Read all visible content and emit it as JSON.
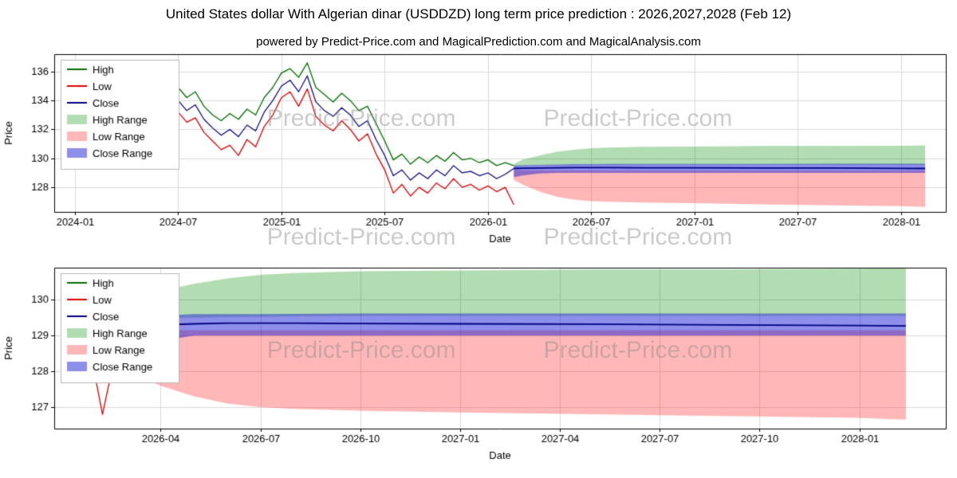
{
  "title": "United States dollar With Algerian dinar (USDDZD) long term price prediction : 2026,2027,2028 (Feb 12)",
  "subtitle": "powered by Predict-Price.com and MagicalPrediction.com and MagicalAnalysis.com",
  "watermark": {
    "text": "Predict-Price.com",
    "color": "#8f8f8f"
  },
  "legend": [
    "High",
    "Low",
    "Close",
    "High Range",
    "Low Range",
    "Close Range"
  ],
  "colors": {
    "high": "#006e00",
    "low": "#dd0000",
    "close": "#000080",
    "high_range": "rgba(0,140,0,0.30)",
    "low_range": "rgba(255,30,30,0.32)",
    "close_range": "rgba(30,30,215,0.50)",
    "grid": "#d9d9d9",
    "axis": "#000000"
  },
  "chart_data": [
    {
      "type": "line",
      "title": "",
      "xlabel": "Date",
      "ylabel": "Price",
      "ylim": [
        126.3,
        137.2
      ],
      "xlim": [
        -1.2,
        50.6
      ],
      "yticks": [
        128,
        130,
        132,
        134,
        136
      ],
      "xticks": {
        "pos": [
          0,
          6,
          12,
          18,
          24,
          30,
          36,
          42,
          48
        ],
        "labels": [
          "2024-01",
          "2024-07",
          "2025-01",
          "2025-07",
          "2026-01",
          "2026-07",
          "2027-01",
          "2027-07",
          "2028-01"
        ]
      },
      "historical": {
        "x": [
          0,
          0.5,
          1,
          1.5,
          2,
          2.5,
          3,
          3.5,
          4,
          4.5,
          5,
          5.5,
          6,
          6.5,
          7,
          7.5,
          8,
          8.5,
          9,
          9.5,
          10,
          10.5,
          11,
          11.5,
          12,
          12.5,
          13,
          13.5,
          14,
          14.5,
          15,
          15.5,
          16,
          16.5,
          17,
          17.5,
          18,
          18.5,
          19,
          19.5,
          20,
          20.5,
          21,
          21.5,
          22,
          22.5,
          23,
          23.5,
          24,
          24.5,
          25,
          25.5
        ],
        "high": [
          134.9,
          134.2,
          134.7,
          133.9,
          134.5,
          133.8,
          134.6,
          134.1,
          134.8,
          134.0,
          134.4,
          133.9,
          134.9,
          134.2,
          134.6,
          133.6,
          133.0,
          132.6,
          133.1,
          132.7,
          133.4,
          133.0,
          134.2,
          134.9,
          135.9,
          136.2,
          135.6,
          136.6,
          134.9,
          134.4,
          133.9,
          134.5,
          134.0,
          133.3,
          133.6,
          132.4,
          131.2,
          129.9,
          130.3,
          129.6,
          130.1,
          129.7,
          130.2,
          129.8,
          130.4,
          129.9,
          130.0,
          129.7,
          129.9,
          129.5,
          129.7,
          129.5
        ],
        "low": [
          133.4,
          132.8,
          133.2,
          132.3,
          132.9,
          132.1,
          133.0,
          132.4,
          133.1,
          132.2,
          132.7,
          132.0,
          133.2,
          132.5,
          132.8,
          131.8,
          131.2,
          130.6,
          130.9,
          130.2,
          131.3,
          130.8,
          132.2,
          133.0,
          134.2,
          134.6,
          133.6,
          134.8,
          132.9,
          132.3,
          131.9,
          132.6,
          132.0,
          131.2,
          131.7,
          130.3,
          129.2,
          127.6,
          128.2,
          127.4,
          128.0,
          127.6,
          128.3,
          127.9,
          128.6,
          128.0,
          128.2,
          127.8,
          128.1,
          127.7,
          128.0,
          126.8
        ],
        "close": [
          134.1,
          133.5,
          133.9,
          133.1,
          133.7,
          133.0,
          133.8,
          133.2,
          133.9,
          133.1,
          133.5,
          133.0,
          134.0,
          133.3,
          133.7,
          132.7,
          132.1,
          131.6,
          132.0,
          131.5,
          132.3,
          131.9,
          133.2,
          134.0,
          135.0,
          135.4,
          134.6,
          135.7,
          133.9,
          133.3,
          132.9,
          133.5,
          133.0,
          132.2,
          132.6,
          131.3,
          130.2,
          128.8,
          129.2,
          128.5,
          129.0,
          128.6,
          129.2,
          128.8,
          129.5,
          129.0,
          129.1,
          128.8,
          129.0,
          128.6,
          128.9,
          129.3
        ]
      },
      "forecast": {
        "x": [
          25.5,
          26,
          27,
          28,
          29,
          30,
          31,
          33,
          36,
          40,
          44,
          48,
          49.4
        ],
        "high_upper": [
          129.6,
          129.9,
          130.2,
          130.45,
          130.6,
          130.7,
          130.75,
          130.8,
          130.82,
          130.85,
          130.85,
          130.87,
          130.9
        ],
        "high_lower": [
          129.4,
          129.45,
          129.5,
          129.5,
          129.52,
          129.53,
          129.54,
          129.55,
          129.55,
          129.55,
          129.55,
          129.55,
          129.55
        ],
        "low_upper": [
          129.2,
          129.18,
          129.16,
          129.15,
          129.15,
          129.15,
          129.15,
          129.15,
          129.15,
          129.15,
          129.15,
          129.15,
          129.15
        ],
        "low_lower": [
          128.5,
          128.2,
          127.7,
          127.35,
          127.15,
          127.05,
          127.0,
          126.95,
          126.9,
          126.82,
          126.76,
          126.7,
          126.65
        ],
        "close_upper": [
          129.5,
          129.52,
          129.55,
          129.58,
          129.6,
          129.6,
          129.61,
          129.62,
          129.62,
          129.62,
          129.63,
          129.63,
          129.63
        ],
        "close_lower": [
          128.7,
          128.82,
          128.95,
          129.0,
          129.0,
          129.0,
          129.0,
          129.0,
          129.0,
          129.0,
          129.0,
          129.0,
          129.0
        ],
        "close": [
          129.3,
          129.32,
          129.34,
          129.35,
          129.36,
          129.36,
          129.36,
          129.35,
          129.35,
          129.34,
          129.33,
          129.31,
          129.3
        ]
      }
    },
    {
      "type": "line",
      "title": "",
      "xlabel": "Date",
      "ylabel": "Price",
      "ylim": [
        126.4,
        130.9
      ],
      "xlim": [
        23.8,
        50.6
      ],
      "yticks": [
        127,
        128,
        129,
        130
      ],
      "xticks": {
        "pos": [
          27,
          30,
          33,
          36,
          39,
          42,
          45,
          48
        ],
        "labels": [
          "2026-04",
          "2026-07",
          "2026-10",
          "2027-01",
          "2027-04",
          "2027-07",
          "2027-10",
          "2028-01"
        ]
      },
      "historical": {
        "x": [
          25.0,
          25.25,
          25.5
        ],
        "high": [
          129.7,
          129.9,
          129.5
        ],
        "low": [
          128.0,
          126.8,
          127.9
        ],
        "close": [
          128.9,
          129.1,
          129.3
        ]
      },
      "forecast": {
        "x": [
          25.5,
          26,
          27,
          28,
          29,
          30,
          31,
          33,
          36,
          40,
          44,
          48,
          49.4
        ],
        "high_upper": [
          129.85,
          130.0,
          130.25,
          130.45,
          130.6,
          130.7,
          130.75,
          130.8,
          130.82,
          130.85,
          130.85,
          130.87,
          130.9
        ],
        "high_lower": [
          129.45,
          129.45,
          129.5,
          129.5,
          129.52,
          129.53,
          129.54,
          129.55,
          129.55,
          129.55,
          129.55,
          129.55,
          129.55
        ],
        "low_upper": [
          129.2,
          129.18,
          129.16,
          129.15,
          129.15,
          129.15,
          129.15,
          129.15,
          129.15,
          129.15,
          129.15,
          129.15,
          129.15
        ],
        "low_lower": [
          128.3,
          128.0,
          127.6,
          127.3,
          127.1,
          127.0,
          126.95,
          126.9,
          126.85,
          126.8,
          126.75,
          126.7,
          126.65
        ],
        "close_upper": [
          129.45,
          129.5,
          129.55,
          129.6,
          129.6,
          129.6,
          129.61,
          129.62,
          129.62,
          129.62,
          129.62,
          129.62,
          129.62
        ],
        "close_lower": [
          129.1,
          128.6,
          128.85,
          129.0,
          129.0,
          129.0,
          129.0,
          129.0,
          129.0,
          129.0,
          129.0,
          129.0,
          129.0
        ],
        "close": [
          129.3,
          129.28,
          129.3,
          129.33,
          129.35,
          129.35,
          129.35,
          129.34,
          129.33,
          129.32,
          129.3,
          129.28,
          129.27
        ]
      }
    }
  ]
}
